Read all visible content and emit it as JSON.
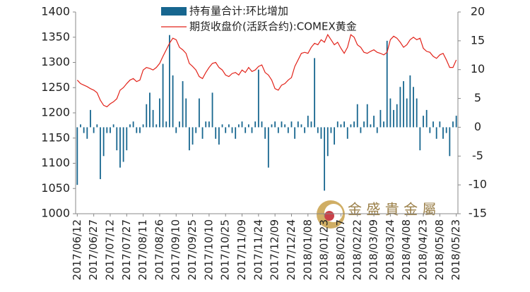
{
  "chart_data": {
    "type": "bar-line",
    "watermark": "金 盛 貴 金 屬",
    "categories": [
      "2017/06/12",
      null,
      null,
      null,
      null,
      "2017/06/27",
      null,
      null,
      null,
      null,
      "2017/07/12",
      null,
      null,
      null,
      null,
      "2017/07/27",
      null,
      null,
      null,
      null,
      "2017/08/11",
      null,
      null,
      null,
      null,
      "2017/08/26",
      null,
      null,
      null,
      null,
      "2017/09/10",
      null,
      null,
      null,
      null,
      "2017/09/25",
      null,
      null,
      null,
      null,
      "2017/10/10",
      null,
      null,
      null,
      null,
      "2017/10/25",
      null,
      null,
      null,
      null,
      "2017/11/09",
      null,
      null,
      null,
      null,
      "2017/11/24",
      null,
      null,
      null,
      null,
      "2017/12/09",
      null,
      null,
      null,
      null,
      "2017/12/24",
      null,
      null,
      null,
      null,
      "2018/01/08",
      null,
      null,
      null,
      null,
      "2018/01/23",
      null,
      null,
      null,
      null,
      "2018/02/07",
      null,
      null,
      null,
      null,
      "2018/02/22",
      null,
      null,
      null,
      null,
      "2018/03/09",
      null,
      null,
      null,
      null,
      "2018/03/24",
      null,
      null,
      null,
      null,
      "2018/04/08",
      null,
      null,
      null,
      null,
      "2018/04/23",
      null,
      null,
      null,
      null,
      "2018/05/08",
      null,
      null,
      null,
      null,
      "2018/05/23"
    ],
    "series": [
      {
        "name": "持有量合计:环比增加",
        "color": "#17668f",
        "axis": "y2",
        "values": [
          -10,
          0.5,
          -1,
          -2,
          3,
          -1,
          0.5,
          -9,
          -5,
          -1,
          -1,
          0.5,
          -4,
          -7,
          -6,
          -4,
          0.5,
          1,
          -1,
          -1,
          0.5,
          4,
          6,
          3,
          0.5,
          5,
          11,
          1,
          16,
          9,
          -1,
          1,
          8,
          5,
          -4,
          -3,
          -1,
          5,
          -2,
          1,
          1,
          6,
          -2,
          -3,
          0.5,
          -1,
          0.5,
          -1,
          -2,
          0.5,
          1,
          -1,
          0.5,
          -1,
          1,
          10,
          1,
          -2,
          -7,
          0.5,
          1,
          -1,
          1,
          0.5,
          -1,
          1,
          -2,
          1,
          0.5,
          -1,
          2,
          1,
          12,
          -1,
          -2,
          -11,
          -5,
          -1,
          -3,
          1,
          0.5,
          1,
          -2,
          0.5,
          1,
          4,
          -1,
          1,
          4,
          0.5,
          2,
          -1,
          3,
          1,
          15,
          5,
          3,
          4,
          7,
          8,
          5,
          9,
          7,
          5,
          -4,
          2,
          3,
          -1,
          1,
          -2,
          1,
          -2,
          -1,
          -5,
          1,
          2
        ]
      },
      {
        "name": "期货收盘价(活跃合约):COMEX黄金",
        "color": "#e2231a",
        "axis": "y",
        "values": [
          1265,
          1258,
          1255,
          1252,
          1248,
          1245,
          1240,
          1225,
          1215,
          1212,
          1218,
          1222,
          1228,
          1245,
          1250,
          1258,
          1265,
          1268,
          1262,
          1265,
          1285,
          1290,
          1288,
          1285,
          1290,
          1298,
          1312,
          1325,
          1338,
          1348,
          1345,
          1330,
          1325,
          1318,
          1298,
          1292,
          1285,
          1272,
          1268,
          1280,
          1290,
          1298,
          1300,
          1290,
          1285,
          1275,
          1272,
          1278,
          1280,
          1275,
          1285,
          1280,
          1290,
          1282,
          1285,
          1292,
          1295,
          1280,
          1275,
          1265,
          1248,
          1245,
          1255,
          1258,
          1265,
          1270,
          1292,
          1305,
          1318,
          1320,
          1318,
          1330,
          1338,
          1335,
          1345,
          1340,
          1355,
          1345,
          1335,
          1340,
          1328,
          1318,
          1330,
          1355,
          1350,
          1335,
          1330,
          1320,
          1318,
          1322,
          1325,
          1320,
          1318,
          1315,
          1320,
          1345,
          1352,
          1348,
          1340,
          1330,
          1335,
          1345,
          1350,
          1345,
          1348,
          1328,
          1322,
          1320,
          1312,
          1308,
          1315,
          1318,
          1305,
          1290,
          1290,
          1305
        ]
      }
    ],
    "ylim": [
      1000,
      1400
    ],
    "yticks": [
      1000,
      1050,
      1100,
      1150,
      1200,
      1250,
      1300,
      1350,
      1400
    ],
    "y2lim": [
      -15,
      20
    ],
    "y2ticks": [
      -15,
      -10,
      -5,
      0,
      5,
      10,
      15,
      20
    ],
    "grid": false
  }
}
